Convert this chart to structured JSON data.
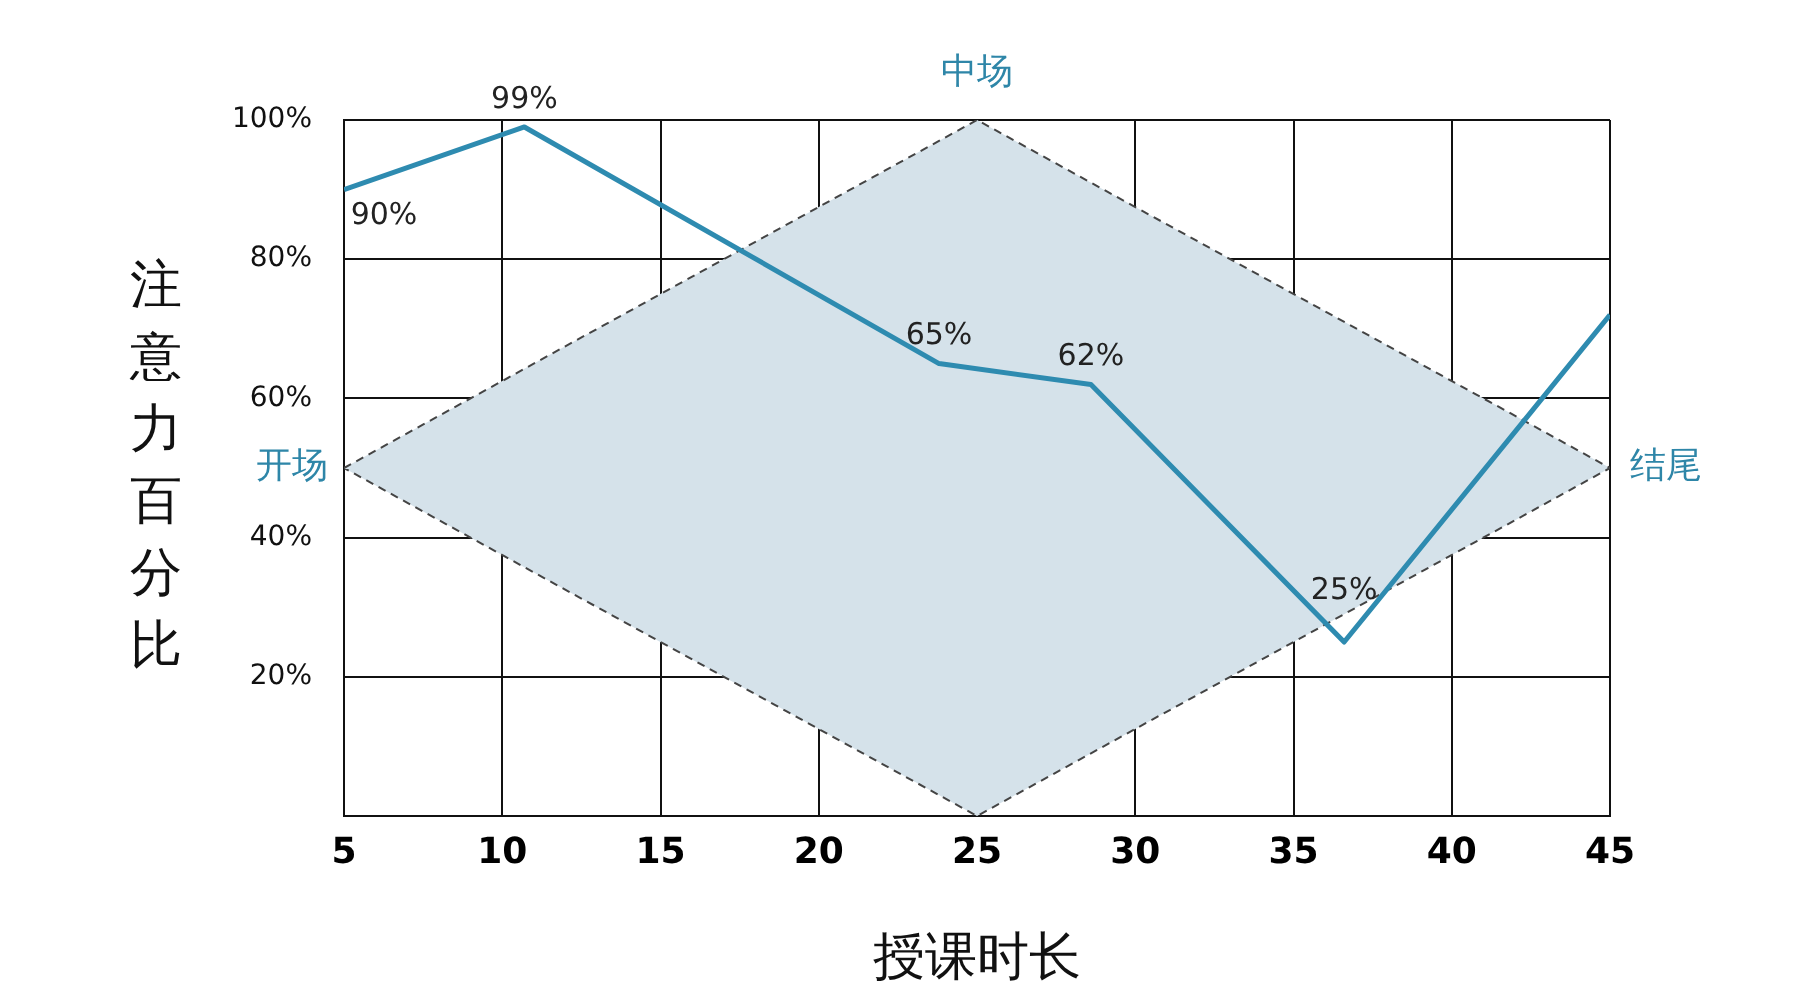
{
  "chart_data": {
    "type": "line",
    "xlabel": "授课时长",
    "ylabel": "注意力百分比",
    "xlim": [
      5,
      45
    ],
    "xticks": [
      5,
      10,
      15,
      20,
      25,
      30,
      35,
      40,
      45
    ],
    "ylim": [
      0,
      100
    ],
    "yticks": [
      {
        "value": 0,
        "label": null
      },
      {
        "value": 20,
        "label": "20%"
      },
      {
        "value": 40,
        "label": "40%"
      },
      {
        "value": 60,
        "label": "60%"
      },
      {
        "value": 80,
        "label": "80%"
      },
      {
        "value": 100,
        "label": "100%"
      }
    ],
    "grid": true,
    "legend": false,
    "marker": "none",
    "series": [
      {
        "type": "area",
        "color": "#d5e2ea",
        "line_style": "dashed",
        "x": [
          5,
          25,
          45,
          25,
          5
        ],
        "values": [
          50,
          100,
          50,
          0,
          50
        ]
      },
      {
        "type": "line",
        "color": "#2e8bb0",
        "line_style": "solid",
        "x": [
          5,
          10.7,
          23.8,
          28.6,
          36.6,
          45
        ],
        "values": [
          90,
          99,
          65,
          62,
          25,
          72
        ],
        "value_labels": [
          "90%",
          "99%",
          "65%",
          "62%",
          "25%",
          null
        ]
      }
    ],
    "annotations": [
      {
        "text": "开场",
        "x": 5,
        "y": 50
      },
      {
        "text": "中场",
        "x": 25,
        "y": 100
      },
      {
        "text": "结尾",
        "x": 45,
        "y": 50
      }
    ]
  }
}
